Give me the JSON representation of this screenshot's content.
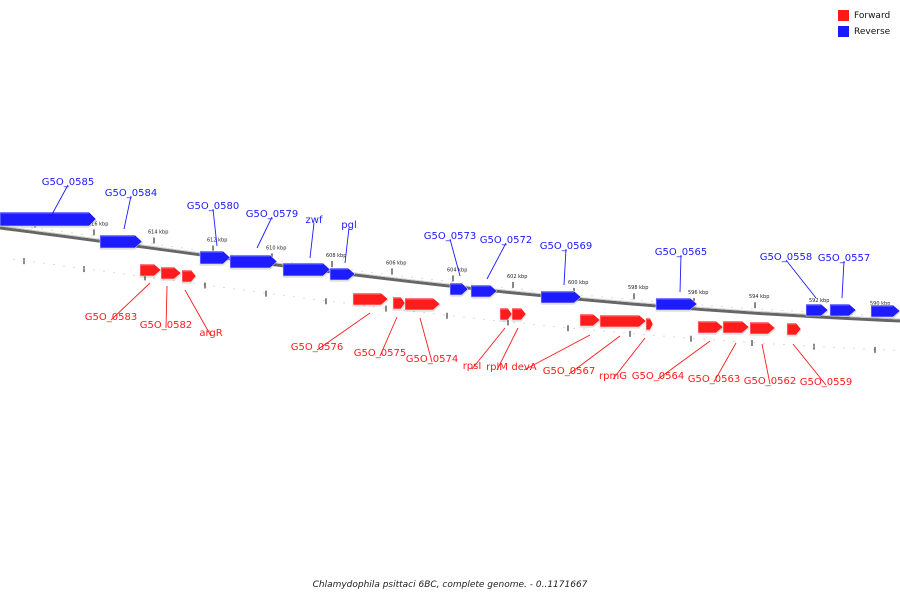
{
  "title": "Chlamydophila psittaci 6BC, complete genome. - 0..1171667",
  "colors": {
    "forward": "#ff1a1a",
    "reverse": "#1a1aff",
    "track": "#666666"
  },
  "legend": [
    {
      "label": "Forward",
      "color": "#ff1a1a"
    },
    {
      "label": "Reverse",
      "color": "#1a1aff"
    }
  ],
  "ticks": [
    "618 kbp",
    "616 kbp",
    "614 kbp",
    "612 kbp",
    "610 kbp",
    "608 kbp",
    "606 kbp",
    "604 kbp",
    "602 kbp",
    "600 kbp",
    "598 kbp",
    "596 kbp",
    "594 kbp",
    "592 kbp",
    "590 kbp"
  ],
  "genes": {
    "reverse": [
      "G5O_0585",
      "G5O_0584",
      "G5O_0580",
      "G5O_0579",
      "zwf",
      "pgl",
      "G5O_0573",
      "G5O_0572",
      "G5O_0569",
      "G5O_0565",
      "G5O_0558",
      "G5O_0557"
    ],
    "forward": [
      "G5O_0583",
      "G5O_0582",
      "argR",
      "G5O_0576",
      "G5O_0575",
      "G5O_0574",
      "rpsI",
      "rplM",
      "devA",
      "G5O_0567",
      "rpmG",
      "G5O_0564",
      "G5O_0563",
      "G5O_0562",
      "G5O_0559"
    ]
  }
}
